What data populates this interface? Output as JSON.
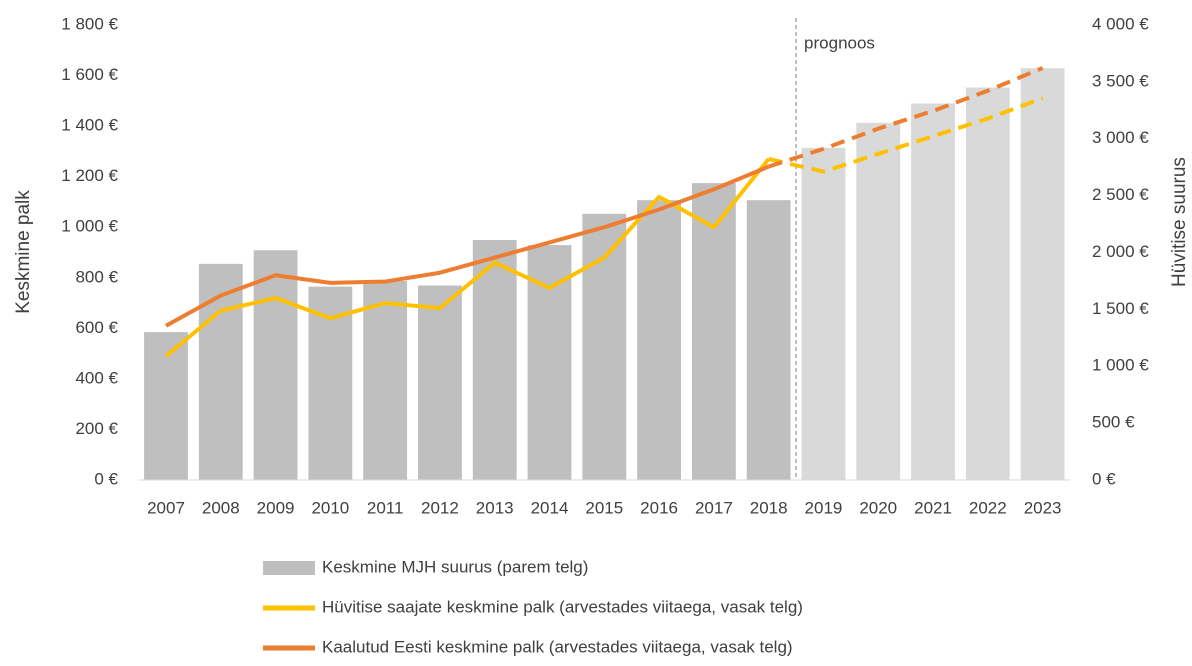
{
  "chart_data": {
    "type": "bar-line",
    "categories": [
      "2007",
      "2008",
      "2009",
      "2010",
      "2011",
      "2012",
      "2013",
      "2014",
      "2015",
      "2016",
      "2017",
      "2018",
      "2019",
      "2020",
      "2021",
      "2022",
      "2023"
    ],
    "ylabel": "Keskmine palk",
    "y2label": "Hüvitise suurus",
    "ylim": [
      0,
      1800
    ],
    "yticks": [
      {
        "value": 0,
        "label": "0 €"
      },
      {
        "value": 200,
        "label": "200 €"
      },
      {
        "value": 400,
        "label": "400 €"
      },
      {
        "value": 600,
        "label": "600 €"
      },
      {
        "value": 800,
        "label": "800 €"
      },
      {
        "value": 1000,
        "label": "1 000 €"
      },
      {
        "value": 1200,
        "label": "1 200 €"
      },
      {
        "value": 1400,
        "label": "1 400 €"
      },
      {
        "value": 1600,
        "label": "1 600 €"
      },
      {
        "value": 1800,
        "label": "1 800 €"
      }
    ],
    "y2lim": [
      0,
      4000
    ],
    "y2ticks": [
      {
        "value": 0,
        "label": "0 €"
      },
      {
        "value": 500,
        "label": "500 €"
      },
      {
        "value": 1000,
        "label": "1 000 €"
      },
      {
        "value": 1500,
        "label": "1 500 €"
      },
      {
        "value": 2000,
        "label": "2 000 €"
      },
      {
        "value": 2500,
        "label": "2 500 €"
      },
      {
        "value": 3000,
        "label": "3 000 €"
      },
      {
        "value": 3500,
        "label": "3 500 €"
      },
      {
        "value": 4000,
        "label": "4 000 €"
      }
    ],
    "forecast": {
      "label": "prognoos",
      "from": "2018",
      "bar_color": "#d9d9d9"
    },
    "series": [
      {
        "name": "Keskmine MJH suurus (parem telg)",
        "type": "bar",
        "axis": "y2",
        "color": "#bfbfbf",
        "values": [
          1300,
          1900,
          2020,
          1700,
          1750,
          1710,
          2110,
          2065,
          2340,
          2460,
          2610,
          2460,
          2920,
          3140,
          3310,
          3450,
          3620
        ]
      },
      {
        "name": "Hüvitise saajate keskmine palk (arvestades viitaega, vasak telg)",
        "type": "line",
        "color": "#ffc000",
        "values": [
          490,
          670,
          720,
          640,
          700,
          680,
          860,
          760,
          880,
          1120,
          1000,
          1270,
          1220,
          1290,
          1360,
          1430,
          1510
        ]
      },
      {
        "name": "Kaalutud Eesti keskmine palk (arvestades viitaega, vasak telg)",
        "type": "line",
        "color": "#ed7d31",
        "values": [
          610,
          730,
          810,
          780,
          785,
          820,
          880,
          940,
          1000,
          1070,
          1150,
          1240,
          1310,
          1390,
          1460,
          1540,
          1630
        ]
      }
    ]
  }
}
